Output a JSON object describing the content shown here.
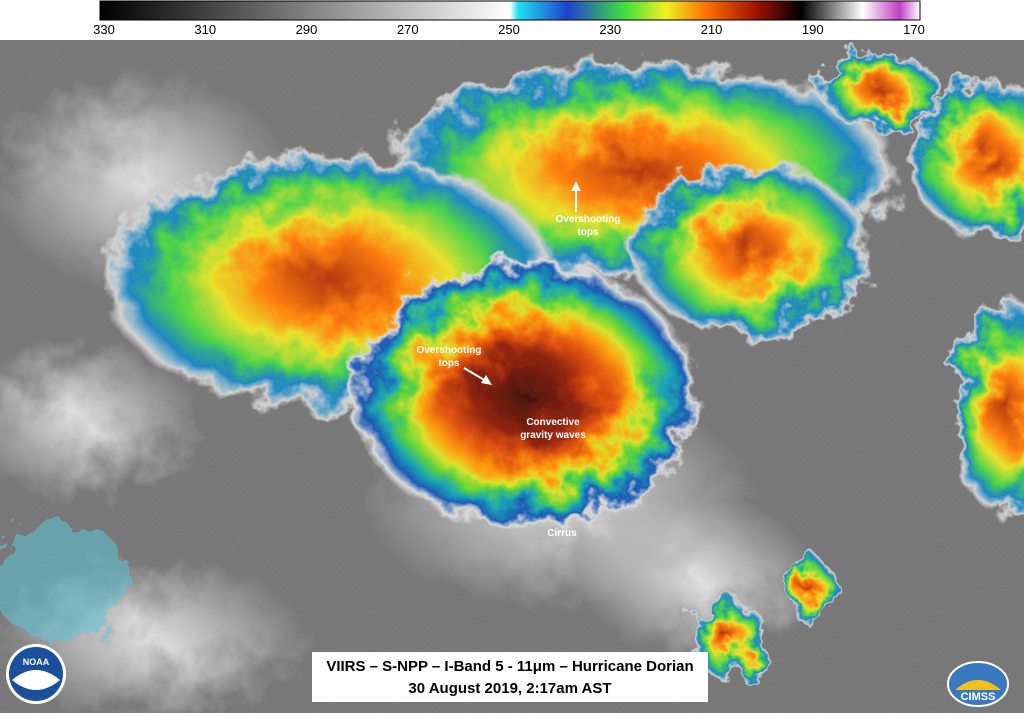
{
  "colorbar": {
    "ticks": [
      330,
      310,
      290,
      270,
      250,
      230,
      210,
      190,
      170
    ]
  },
  "annotations": [
    {
      "lines": [
        "Overshooting",
        "tops"
      ]
    },
    {
      "lines": [
        "Overshooting",
        "tops"
      ]
    },
    {
      "lines": [
        "Convective",
        "gravity waves"
      ]
    },
    {
      "lines": [
        "Cirrus"
      ]
    }
  ],
  "caption": {
    "lines": [
      "VIIRS – S-NPP – I-Band 5 - 11μm – Hurricane Dorian",
      "30 August 2019, 2:17am AST"
    ]
  },
  "logos": {
    "noaa": "NOAA",
    "cimss": "CIMSS"
  }
}
